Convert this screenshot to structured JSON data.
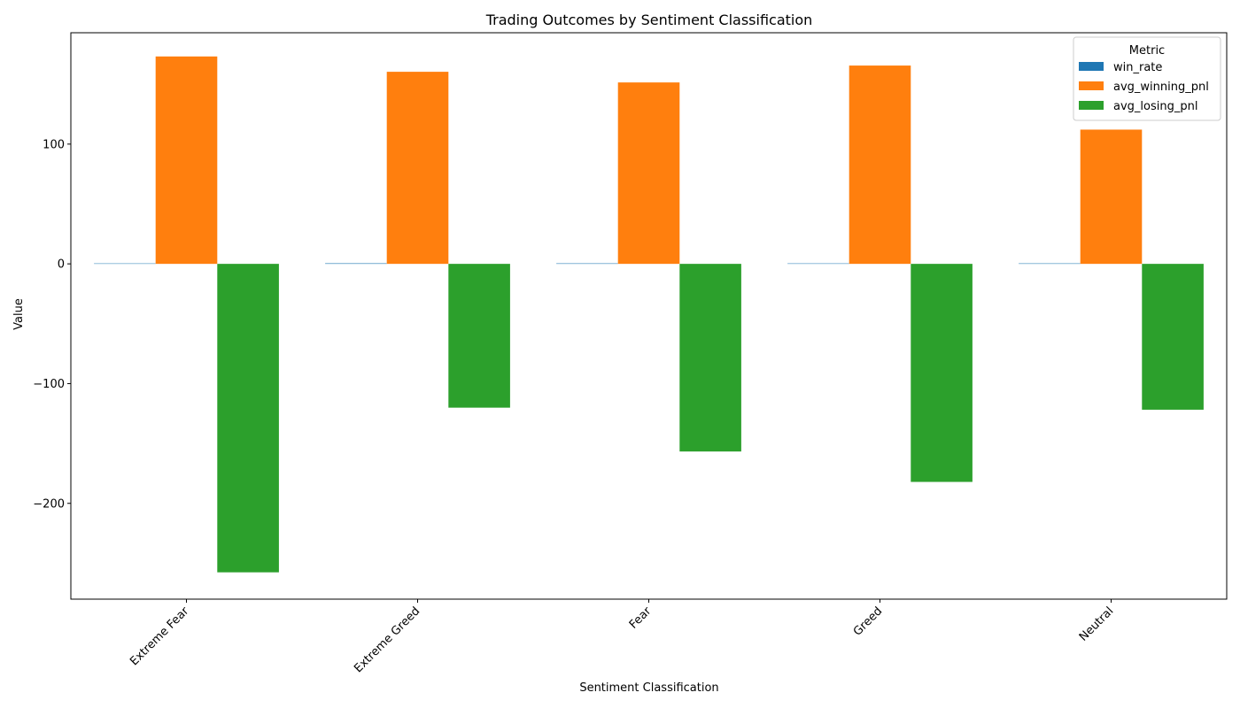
{
  "chart_data": {
    "type": "bar",
    "title": "Trading Outcomes by Sentiment Classification",
    "xlabel": "Sentiment Classification",
    "ylabel": "Value",
    "categories": [
      "Extreme Fear",
      "Extreme Greed",
      "Fear",
      "Greed",
      "Neutral"
    ],
    "series": [
      {
        "name": "win_rate",
        "color": "#1f77b4",
        "values": [
          0.37,
          0.46,
          0.42,
          0.38,
          0.4
        ]
      },
      {
        "name": "avg_winning_pnl",
        "color": "#ff7f0e",
        "values": [
          173.2,
          160.4,
          151.5,
          165.6,
          112.1
        ]
      },
      {
        "name": "avg_losing_pnl",
        "color": "#2ca02c",
        "values": [
          -257.6,
          -120.1,
          -156.7,
          -182.1,
          -121.8
        ]
      }
    ],
    "ylim": [
      -280,
      193
    ],
    "yticks": [
      -200,
      -100,
      0,
      100
    ],
    "legend": {
      "title": "Metric",
      "placement": "top-right"
    },
    "grid": false
  }
}
